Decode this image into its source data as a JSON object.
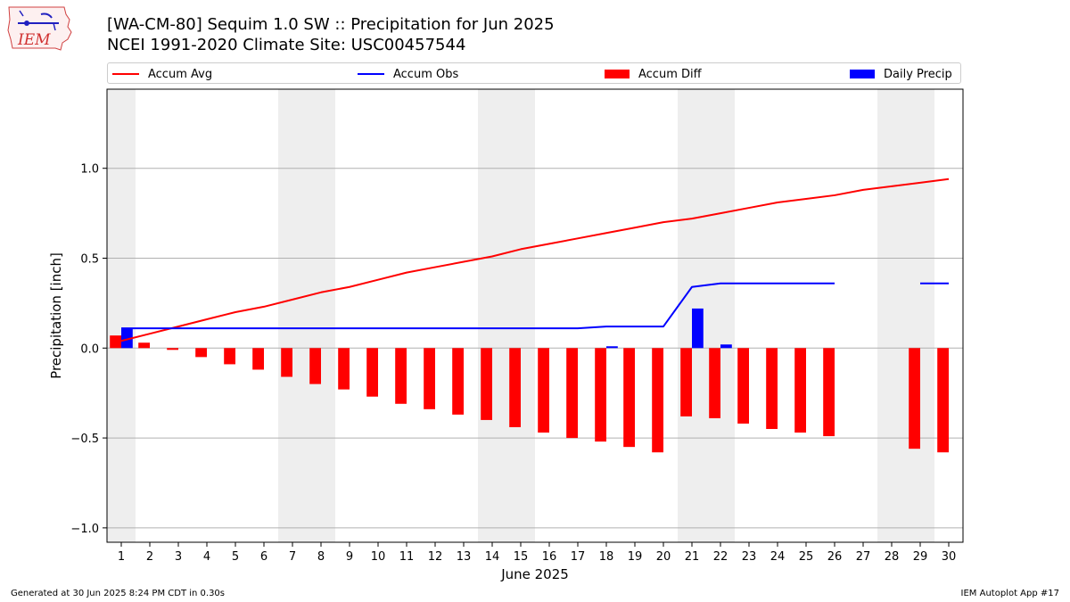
{
  "logo_text": "IEM",
  "title_line1": "[WA-CM-80] Sequim 1.0 SW :: Precipitation for Jun 2025",
  "title_line2": "NCEI 1991-2020 Climate Site: USC00457544",
  "footer_left": "Generated at 30 Jun 2025 8:24 PM CDT in 0.30s",
  "footer_right": "IEM Autoplot App #17",
  "colors": {
    "avg": "#ff0000",
    "obs": "#0000ff",
    "diff": "#ff0000",
    "daily": "#0000ff",
    "weekend_shade": "#eeeeee",
    "grid": "#b0b0b0"
  },
  "chart_data": {
    "type": "bar",
    "title": "[WA-CM-80] Sequim 1.0 SW :: Precipitation for Jun 2025",
    "subtitle": "NCEI 1991-2020 Climate Site: USC00457544",
    "xlabel": "June 2025",
    "ylabel": "Precipitation [inch]",
    "x": [
      1,
      2,
      3,
      4,
      5,
      6,
      7,
      8,
      9,
      10,
      11,
      12,
      13,
      14,
      15,
      16,
      17,
      18,
      19,
      20,
      21,
      22,
      23,
      24,
      25,
      26,
      27,
      28,
      29,
      30
    ],
    "xlim": [
      0.5,
      30.5
    ],
    "ylim": [
      -1.08,
      1.44
    ],
    "yticks": [
      -1.0,
      -0.5,
      0.0,
      0.5,
      1.0
    ],
    "ytick_labels": [
      "−1.0",
      "−0.5",
      "0.0",
      "0.5",
      "1.0"
    ],
    "grid": "horizontal",
    "legend_position": "top",
    "weekend_shading": [
      [
        0.5,
        1.5
      ],
      [
        6.5,
        8.5
      ],
      [
        13.5,
        15.5
      ],
      [
        20.5,
        22.5
      ],
      [
        27.5,
        29.5
      ]
    ],
    "series": [
      {
        "name": "Accum Avg",
        "type": "line",
        "values": [
          0.04,
          0.08,
          0.12,
          0.16,
          0.2,
          0.23,
          0.27,
          0.31,
          0.34,
          0.38,
          0.42,
          0.45,
          0.48,
          0.51,
          0.55,
          0.58,
          0.61,
          0.64,
          0.67,
          0.7,
          0.72,
          0.75,
          0.78,
          0.81,
          0.83,
          0.85,
          0.88,
          0.9,
          0.92,
          0.94
        ]
      },
      {
        "name": "Accum Obs",
        "type": "line",
        "values": [
          0.11,
          0.11,
          0.11,
          0.11,
          0.11,
          0.11,
          0.11,
          0.11,
          0.11,
          0.11,
          0.11,
          0.11,
          0.11,
          0.11,
          0.11,
          0.11,
          0.11,
          0.12,
          0.12,
          0.12,
          0.34,
          0.36,
          0.36,
          0.36,
          0.36,
          0.36,
          null,
          null,
          0.36,
          0.36
        ]
      },
      {
        "name": "Accum Diff",
        "type": "bar",
        "values": [
          0.07,
          0.03,
          -0.01,
          -0.05,
          -0.09,
          -0.12,
          -0.16,
          -0.2,
          -0.23,
          -0.27,
          -0.31,
          -0.34,
          -0.37,
          -0.4,
          -0.44,
          -0.47,
          -0.5,
          -0.52,
          -0.55,
          -0.58,
          -0.38,
          -0.39,
          -0.42,
          -0.45,
          -0.47,
          -0.49,
          null,
          null,
          -0.56,
          -0.58
        ]
      },
      {
        "name": "Daily Precip",
        "type": "bar",
        "values": [
          0.11,
          0,
          0,
          0,
          0,
          0,
          0,
          0,
          0,
          0,
          0,
          0,
          0,
          0,
          0,
          0,
          0,
          0.01,
          0,
          0,
          0.22,
          0.02,
          0,
          0,
          0,
          0,
          null,
          null,
          0,
          0
        ]
      }
    ]
  }
}
